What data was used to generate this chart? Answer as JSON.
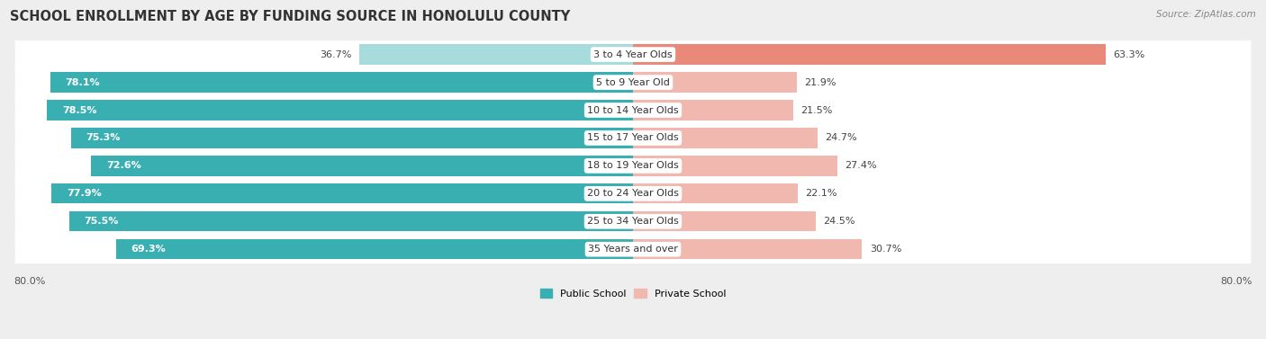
{
  "title": "SCHOOL ENROLLMENT BY AGE BY FUNDING SOURCE IN HONOLULU COUNTY",
  "source": "Source: ZipAtlas.com",
  "categories": [
    "3 to 4 Year Olds",
    "5 to 9 Year Old",
    "10 to 14 Year Olds",
    "15 to 17 Year Olds",
    "18 to 19 Year Olds",
    "20 to 24 Year Olds",
    "25 to 34 Year Olds",
    "35 Years and over"
  ],
  "public_values": [
    36.7,
    78.1,
    78.5,
    75.3,
    72.6,
    77.9,
    75.5,
    69.3
  ],
  "private_values": [
    63.3,
    21.9,
    21.5,
    24.7,
    27.4,
    22.1,
    24.5,
    30.7
  ],
  "public_color_light": "#A8DCDC",
  "public_color_dark": "#3AAFB2",
  "private_color_dark": "#E8897A",
  "private_color_light": "#F0B8AE",
  "background_color": "#eeeeee",
  "row_bg_color": "#ffffff",
  "x_left_label": "80.0%",
  "x_right_label": "80.0%",
  "legend_public": "Public School",
  "legend_private": "Private School",
  "title_fontsize": 10.5,
  "label_fontsize": 8.0,
  "value_fontsize": 8.0,
  "axis_fontsize": 8.0
}
